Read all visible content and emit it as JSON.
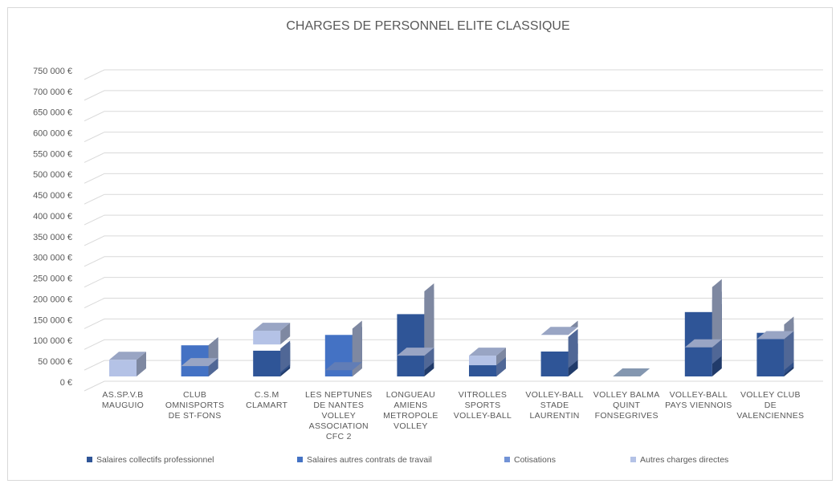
{
  "chart_data": {
    "type": "bar3d_stacked",
    "title": "CHARGES DE PERSONNEL ELITE CLASSIQUE",
    "categories": [
      "AS.SP.V.B MAUGUIO",
      "CLUB OMNISPORTS DE ST-FONS",
      "C.S.M CLAMART",
      "LES NEPTUNES DE NANTES VOLLEY ASSOCIATION CFC 2",
      "LONGUEAU AMIENS METROPOLE VOLLEY",
      "VITROLLES SPORTS VOLLEY-BALL",
      "VOLLEY-BALL STADE LAURENTIN",
      "VOLLEY BALMA QUINT FONSEGRIVES",
      "VOLLEY-BALL PAYS VIENNOIS",
      "VOLLEY CLUB DE VALENCIENNES"
    ],
    "series": [
      {
        "name": "Salaires collectifs professionnel",
        "color": "#2f5597",
        "values": [
          0,
          0,
          62000,
          0,
          150000,
          27000,
          60000,
          0,
          155000,
          105000
        ]
      },
      {
        "name": "Salaires autres contrats de travail",
        "color": "#4472c4",
        "values": [
          0,
          75000,
          5000,
          100000,
          40000,
          0,
          35000,
          0,
          30000,
          5000
        ]
      },
      {
        "name": "Cotisations",
        "color": "#7293d6",
        "values": [
          0,
          0,
          10000,
          15000,
          15000,
          0,
          20000,
          0,
          30000,
          15000
        ]
      },
      {
        "name": "Autres charges directes",
        "color": "#b4c2e6",
        "values": [
          40000,
          25000,
          110000,
          0,
          50000,
          50000,
          100000,
          0,
          70000,
          90000
        ]
      }
    ],
    "ylim": [
      0,
      750000
    ],
    "yticks": [
      {
        "value": 0,
        "label": "0 €"
      },
      {
        "value": 50000,
        "label": "50 000 €"
      },
      {
        "value": 100000,
        "label": "100 000 €"
      },
      {
        "value": 150000,
        "label": "150 000 €"
      },
      {
        "value": 200000,
        "label": "200 000 €"
      },
      {
        "value": 250000,
        "label": "250 000 €"
      },
      {
        "value": 300000,
        "label": "300 000 €"
      },
      {
        "value": 350000,
        "label": "350 000 €"
      },
      {
        "value": 400000,
        "label": "400 000 €"
      },
      {
        "value": 450000,
        "label": "450 000 €"
      },
      {
        "value": 500000,
        "label": "500 000 €"
      },
      {
        "value": 550000,
        "label": "550 000 €"
      },
      {
        "value": 600000,
        "label": "600 000 €"
      },
      {
        "value": 650000,
        "label": "650 000 €"
      },
      {
        "value": 700000,
        "label": "700 000 €"
      },
      {
        "value": 750000,
        "label": "750 000 €"
      }
    ],
    "grid": true,
    "legend": "bottom"
  }
}
